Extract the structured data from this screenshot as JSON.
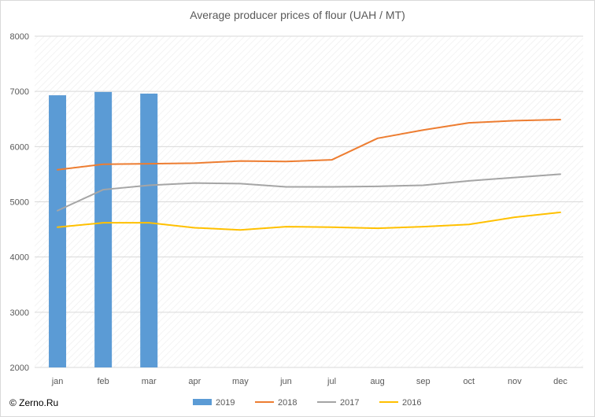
{
  "copyright": "© Zerno.Ru",
  "chart_data": {
    "type": "bar+line",
    "title": "Average producer prices of flour (UAH / MT)",
    "categories": [
      "jan",
      "feb",
      "mar",
      "apr",
      "may",
      "jun",
      "jul",
      "aug",
      "sep",
      "oct",
      "nov",
      "dec"
    ],
    "ylim": [
      2000,
      8000
    ],
    "yticks": [
      "2000",
      "3000",
      "4000",
      "5000",
      "6000",
      "7000",
      "8000"
    ],
    "grid": true,
    "legend_position": "bottom",
    "series": [
      {
        "name": "2019",
        "type": "bar",
        "color": "#5b9bd5",
        "values": [
          6930,
          6990,
          6960,
          null,
          null,
          null,
          null,
          null,
          null,
          null,
          null,
          null
        ]
      },
      {
        "name": "2018",
        "type": "line",
        "color": "#ed7d31",
        "values": [
          5580,
          5680,
          5690,
          5700,
          5740,
          5730,
          5760,
          6150,
          6300,
          6430,
          6470,
          6490
        ]
      },
      {
        "name": "2017",
        "type": "line",
        "color": "#a5a5a5",
        "values": [
          4840,
          5220,
          5300,
          5340,
          5330,
          5270,
          5270,
          5280,
          5300,
          5380,
          5440,
          5500
        ]
      },
      {
        "name": "2016",
        "type": "line",
        "color": "#ffc000",
        "values": [
          4540,
          4620,
          4620,
          4530,
          4490,
          4550,
          4540,
          4520,
          4550,
          4590,
          4720,
          4810
        ]
      }
    ]
  }
}
